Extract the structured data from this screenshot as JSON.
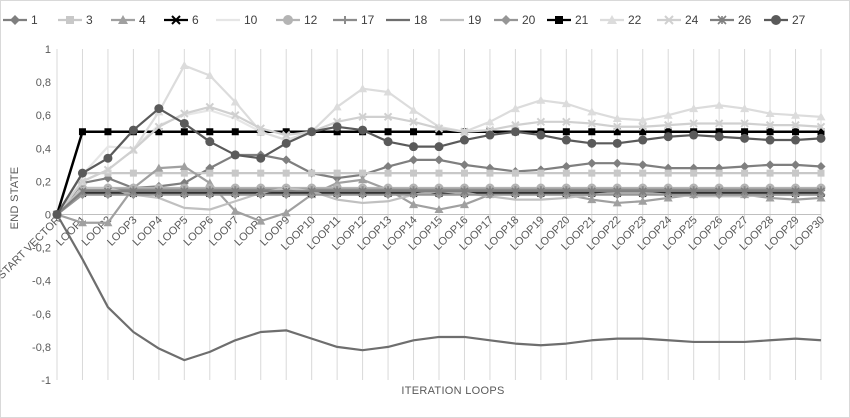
{
  "chart_data": {
    "type": "line",
    "title": "",
    "xlabel": "ITERATION LOOPS",
    "ylabel": "END STATE",
    "ylim": [
      -1,
      1
    ],
    "ytick_step": 0.2,
    "ytick_labels": [
      "1",
      "0,8",
      "0,6",
      "0,4",
      "0,2",
      "0",
      "-0,2",
      "-0,4",
      "-0,6",
      "-0,8",
      "-1"
    ],
    "grid": "vertical",
    "legend": "top",
    "categories": [
      "START VECTOR",
      "LOOP1",
      "LOOP2",
      "LOOP3",
      "LOOP4",
      "LOOP5",
      "LOOP6",
      "LOOP7",
      "LOOP8",
      "LOOP9",
      "LOOP10",
      "LOOP11",
      "LOOP12",
      "LOOP13",
      "LOOP14",
      "LOOP15",
      "LOOP16",
      "LOOP17",
      "LOOP18",
      "LOOP19",
      "LOOP20",
      "LOOP21",
      "LOOP22",
      "LOOP23",
      "LOOP24",
      "LOOP25",
      "LOOP26",
      "LOOP27",
      "LOOP28",
      "LOOP29",
      "LOOP30"
    ],
    "series": [
      {
        "name": "1",
        "color": "#7f7f7f",
        "marker": "diamond",
        "values": [
          0,
          0.19,
          0.22,
          0.16,
          0.17,
          0.19,
          0.28,
          0.36,
          0.36,
          0.33,
          0.25,
          0.22,
          0.24,
          0.29,
          0.33,
          0.33,
          0.3,
          0.28,
          0.26,
          0.27,
          0.29,
          0.31,
          0.31,
          0.3,
          0.28,
          0.28,
          0.28,
          0.29,
          0.3,
          0.3,
          0.29
        ]
      },
      {
        "name": "3",
        "color": "#c8c8c8",
        "marker": "square",
        "values": [
          0,
          0.25,
          0.25,
          0.25,
          0.25,
          0.25,
          0.25,
          0.25,
          0.25,
          0.25,
          0.25,
          0.25,
          0.25,
          0.25,
          0.25,
          0.25,
          0.25,
          0.25,
          0.25,
          0.25,
          0.25,
          0.25,
          0.25,
          0.25,
          0.25,
          0.25,
          0.25,
          0.25,
          0.25,
          0.25,
          0.25
        ]
      },
      {
        "name": "4",
        "color": "#a0a0a0",
        "marker": "triangle",
        "values": [
          0,
          -0.05,
          -0.05,
          0.16,
          0.28,
          0.29,
          0.19,
          0.02,
          -0.04,
          0.01,
          0.12,
          0.19,
          0.21,
          0.15,
          0.06,
          0.03,
          0.06,
          0.12,
          0.16,
          0.15,
          0.12,
          0.09,
          0.07,
          0.08,
          0.1,
          0.12,
          0.13,
          0.12,
          0.1,
          0.09,
          0.1
        ]
      },
      {
        "name": "6",
        "color": "#000000",
        "marker": "x",
        "values": [
          0,
          0.13,
          0.13,
          0.13,
          0.13,
          0.13,
          0.13,
          0.13,
          0.13,
          0.13,
          0.13,
          0.13,
          0.13,
          0.13,
          0.13,
          0.13,
          0.13,
          0.13,
          0.13,
          0.13,
          0.13,
          0.13,
          0.13,
          0.13,
          0.13,
          0.13,
          0.13,
          0.13,
          0.13,
          0.13,
          0.13
        ]
      },
      {
        "name": "10",
        "color": "#e6e6e6",
        "marker": "none",
        "values": [
          0,
          0.24,
          0.41,
          0.4,
          0.54,
          0.6,
          0.63,
          0.58,
          0.5,
          0.45,
          0.5,
          0.5,
          0.5,
          0.5,
          0.5,
          0.5,
          0.5,
          0.5,
          0.5,
          0.5,
          0.5,
          0.5,
          0.5,
          0.5,
          0.5,
          0.5,
          0.5,
          0.5,
          0.5,
          0.5,
          0.5
        ]
      },
      {
        "name": "12",
        "color": "#b4b4b4",
        "marker": "circle",
        "values": [
          0,
          0.16,
          0.16,
          0.16,
          0.16,
          0.16,
          0.16,
          0.16,
          0.16,
          0.16,
          0.16,
          0.16,
          0.16,
          0.16,
          0.16,
          0.16,
          0.16,
          0.16,
          0.16,
          0.16,
          0.16,
          0.16,
          0.16,
          0.16,
          0.16,
          0.16,
          0.16,
          0.16,
          0.16,
          0.16,
          0.16
        ]
      },
      {
        "name": "17",
        "color": "#8c8c8c",
        "marker": "plus",
        "values": [
          0,
          0.15,
          0.15,
          0.15,
          0.15,
          0.15,
          0.15,
          0.15,
          0.15,
          0.15,
          0.15,
          0.15,
          0.15,
          0.15,
          0.15,
          0.15,
          0.15,
          0.15,
          0.15,
          0.15,
          0.15,
          0.15,
          0.15,
          0.15,
          0.15,
          0.15,
          0.15,
          0.15,
          0.15,
          0.15,
          0.15
        ]
      },
      {
        "name": "18",
        "color": "#6e6e6e",
        "marker": "none",
        "values": [
          0,
          -0.27,
          -0.56,
          -0.71,
          -0.81,
          -0.88,
          -0.83,
          -0.76,
          -0.71,
          -0.7,
          -0.75,
          -0.8,
          -0.82,
          -0.8,
          -0.76,
          -0.74,
          -0.74,
          -0.76,
          -0.78,
          -0.79,
          -0.78,
          -0.76,
          -0.75,
          -0.75,
          -0.76,
          -0.77,
          -0.77,
          -0.77,
          -0.76,
          -0.75,
          -0.76
        ]
      },
      {
        "name": "19",
        "color": "#c0c0c0",
        "marker": "none",
        "values": [
          0,
          0.16,
          0.16,
          0.12,
          0.1,
          0.04,
          0.03,
          0.08,
          0.13,
          0.16,
          0.14,
          0.09,
          0.07,
          0.08,
          0.12,
          0.14,
          0.13,
          0.11,
          0.09,
          0.09,
          0.1,
          0.12,
          0.13,
          0.13,
          0.12,
          0.11,
          0.11,
          0.11,
          0.12,
          0.12,
          0.12
        ]
      },
      {
        "name": "20",
        "color": "#969696",
        "marker": "diamond",
        "values": [
          0,
          0.12,
          0.12,
          0.12,
          0.12,
          0.12,
          0.12,
          0.12,
          0.12,
          0.12,
          0.12,
          0.12,
          0.12,
          0.12,
          0.12,
          0.12,
          0.12,
          0.12,
          0.12,
          0.12,
          0.12,
          0.12,
          0.12,
          0.12,
          0.12,
          0.12,
          0.12,
          0.12,
          0.12,
          0.12,
          0.12
        ]
      },
      {
        "name": "21",
        "color": "#000000",
        "marker": "square",
        "values": [
          0,
          0.5,
          0.5,
          0.5,
          0.5,
          0.5,
          0.5,
          0.5,
          0.5,
          0.5,
          0.5,
          0.5,
          0.5,
          0.5,
          0.5,
          0.5,
          0.5,
          0.5,
          0.5,
          0.5,
          0.5,
          0.5,
          0.5,
          0.5,
          0.5,
          0.5,
          0.5,
          0.5,
          0.5,
          0.5,
          0.5
        ]
      },
      {
        "name": "22",
        "color": "#dcdcdc",
        "marker": "triangle",
        "values": [
          0,
          0.2,
          0.27,
          0.39,
          0.62,
          0.9,
          0.84,
          0.68,
          0.5,
          0.45,
          0.5,
          0.65,
          0.76,
          0.74,
          0.63,
          0.53,
          0.5,
          0.56,
          0.64,
          0.69,
          0.67,
          0.62,
          0.58,
          0.57,
          0.6,
          0.64,
          0.66,
          0.64,
          0.61,
          0.6,
          0.59
        ]
      },
      {
        "name": "24",
        "color": "#d0d0d0",
        "marker": "x",
        "values": [
          0,
          0.2,
          0.27,
          0.39,
          0.53,
          0.61,
          0.65,
          0.6,
          0.52,
          0.48,
          0.5,
          0.56,
          0.59,
          0.59,
          0.56,
          0.52,
          0.5,
          0.51,
          0.54,
          0.56,
          0.56,
          0.55,
          0.53,
          0.53,
          0.54,
          0.55,
          0.55,
          0.55,
          0.54,
          0.54,
          0.53
        ]
      },
      {
        "name": "26",
        "color": "#808080",
        "marker": "asterisk",
        "values": [
          0,
          0.14,
          0.14,
          0.14,
          0.14,
          0.14,
          0.14,
          0.14,
          0.14,
          0.14,
          0.14,
          0.14,
          0.14,
          0.14,
          0.14,
          0.14,
          0.14,
          0.14,
          0.14,
          0.14,
          0.14,
          0.14,
          0.14,
          0.14,
          0.14,
          0.14,
          0.14,
          0.14,
          0.14,
          0.14,
          0.14
        ]
      },
      {
        "name": "27",
        "color": "#5a5a5a",
        "marker": "circle",
        "values": [
          0,
          0.25,
          0.34,
          0.51,
          0.64,
          0.55,
          0.44,
          0.36,
          0.34,
          0.43,
          0.5,
          0.53,
          0.51,
          0.44,
          0.41,
          0.41,
          0.45,
          0.48,
          0.5,
          0.48,
          0.45,
          0.43,
          0.43,
          0.45,
          0.47,
          0.48,
          0.47,
          0.46,
          0.45,
          0.45,
          0.46
        ]
      }
    ]
  }
}
